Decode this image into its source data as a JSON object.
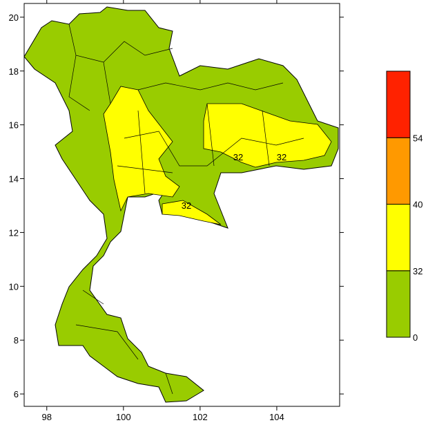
{
  "map": {
    "xlim": [
      97.41,
      105.64
    ],
    "ylim": [
      5.54,
      20.51
    ],
    "xticks": [
      98,
      100,
      102,
      104
    ],
    "yticks": [
      6,
      8,
      10,
      12,
      14,
      16,
      18,
      20
    ]
  },
  "colorbar": {
    "levels": [
      0,
      32,
      40,
      54
    ],
    "colors": [
      "#99cc00",
      "#ffff00",
      "#ff9900",
      "#ff2200"
    ]
  },
  "contour_labels": [
    "32",
    "32",
    "32"
  ]
}
